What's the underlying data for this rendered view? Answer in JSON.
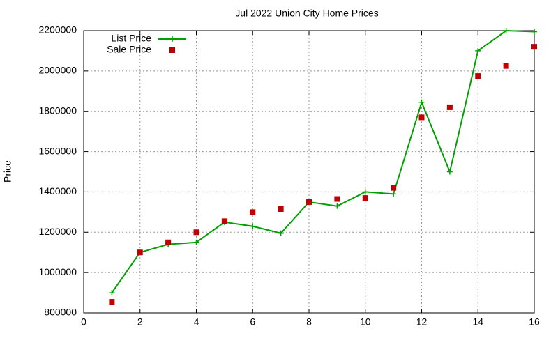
{
  "chart_data": {
    "type": "line",
    "title": "Jul 2022 Union City Home Prices",
    "y_label": "Price",
    "x": [
      1,
      2,
      3,
      4,
      5,
      6,
      7,
      8,
      9,
      10,
      11,
      12,
      13,
      14,
      15,
      16
    ],
    "series": [
      {
        "name": "List Price",
        "color": "#00a000",
        "style": "linespoints",
        "values": [
          900000,
          1100000,
          1140000,
          1150000,
          1250000,
          1230000,
          1195000,
          1350000,
          1330000,
          1400000,
          1390000,
          1845000,
          1500000,
          2100000,
          2200000,
          2195000
        ]
      },
      {
        "name": "Sale Price",
        "color": "#c00000",
        "style": "points",
        "values": [
          855000,
          1100000,
          1150000,
          1200000,
          1255000,
          1300000,
          1315000,
          1350000,
          1365000,
          1370000,
          1420000,
          1770000,
          1820000,
          1975000,
          2025000,
          2120000
        ]
      }
    ],
    "xlim": [
      0,
      16
    ],
    "xticks": [
      0,
      2,
      4,
      6,
      8,
      10,
      12,
      14,
      16
    ],
    "ylim": [
      800000,
      2200000
    ],
    "yticks": [
      800000,
      1000000,
      1200000,
      1400000,
      1600000,
      1800000,
      2000000,
      2200000
    ],
    "grid": true,
    "legend": "top-left"
  }
}
